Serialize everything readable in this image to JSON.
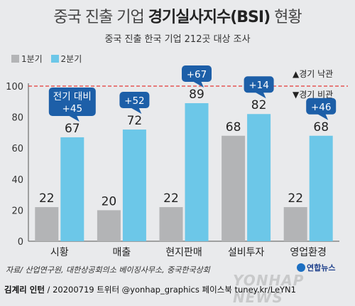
{
  "header": {
    "title_part1": "중국 진출 기업 ",
    "title_bold": "경기실사지수(BSI)",
    "title_part2": " 현황",
    "subtitle": "중국 진출 한국 기업 212곳 대상 조사"
  },
  "colors": {
    "q1": "#b3b4b6",
    "q2": "#6cc7e8",
    "badge": "#1d5fa8",
    "refline": "#e53935"
  },
  "chart_data": {
    "type": "bar",
    "categories": [
      "시황",
      "매출",
      "현지판매",
      "설비투자",
      "영업환경"
    ],
    "series": [
      {
        "name": "1분기",
        "values": [
          22,
          20,
          22,
          68,
          22
        ]
      },
      {
        "name": "2분기",
        "values": [
          67,
          72,
          89,
          82,
          68
        ]
      }
    ],
    "ylim": [
      0,
      100
    ],
    "yticks": [
      0,
      20,
      40,
      60,
      80,
      100
    ],
    "reference_line": {
      "value": 100,
      "above_label": "▲경기 낙관",
      "below_label": "▼경기 비관"
    },
    "annotations": [
      {
        "category": "시황",
        "lines": [
          "전기 대비",
          "+45"
        ]
      },
      {
        "category": "매출",
        "lines": [
          "+52"
        ]
      },
      {
        "category": "현지판매",
        "lines": [
          "+67"
        ]
      },
      {
        "category": "설비투자",
        "lines": [
          "+14"
        ]
      },
      {
        "category": "영업환경",
        "lines": [
          "+46"
        ]
      }
    ],
    "grid": false,
    "legend_position": "top-left"
  },
  "footer": {
    "source": "자료/ 산업연구원, 대한상공회의소 베이징사무소, 중국한국상회",
    "credit_bold": "김계리 인턴",
    "credit_rest": " / 20200719  트위터 @yonhap_graphics  페이스북 tuney.kr/LeYN1",
    "logo_text": "연합뉴스",
    "watermark": "YONHAP NEWS"
  }
}
